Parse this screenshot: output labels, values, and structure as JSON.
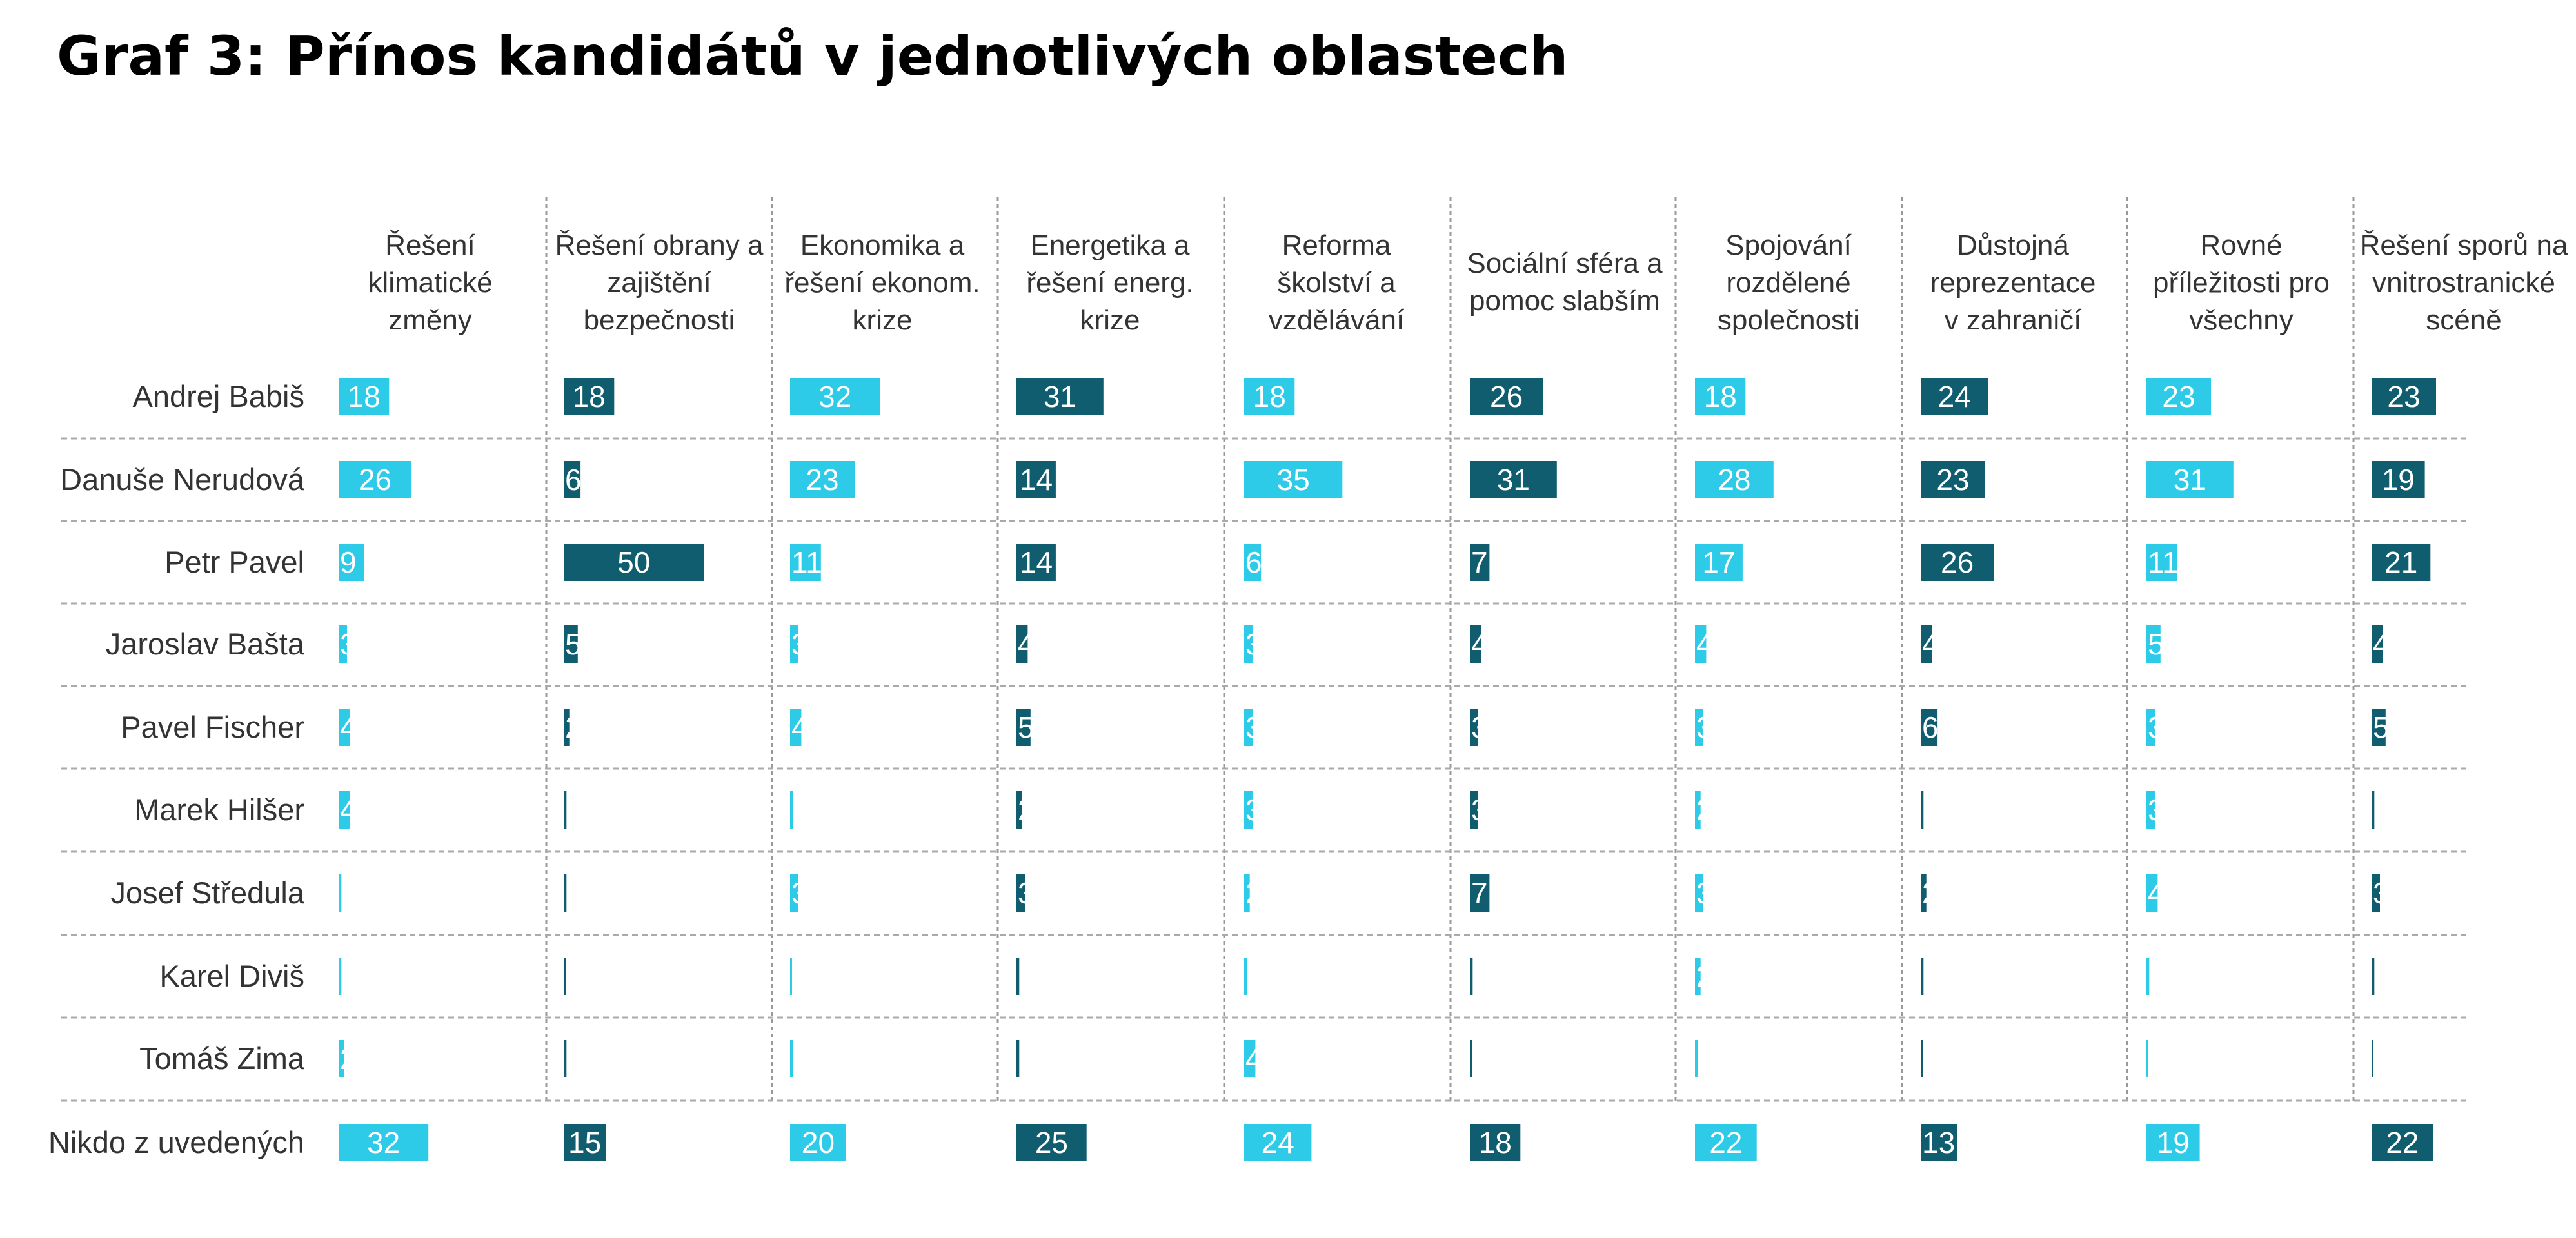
{
  "title": "Graf 3: Přínos kandidátů v jednotlivých oblastech",
  "colors": {
    "light": "#2ecbe8",
    "dark": "#0f5d6e",
    "divider": "#999999",
    "text": "#333333"
  },
  "chart_data": {
    "type": "bar",
    "title": "Graf 3: Přínos kandidátů v jednotlivých oblastech",
    "categories": [
      "Řešení klimatické změny",
      "Řešení obrany a zajištění bezpečnosti",
      "Ekonomika a řešení ekonom. krize",
      "Energetika a řešení energ. krize",
      "Reforma školství a vzdělávání",
      "Sociální sféra a pomoc slabším",
      "Spojování rozdělené společnosti",
      "Důstojná reprezentace v zahraničí",
      "Rovné příležitosti pro všechny",
      "Řešení sporů na vnitrostranické scéně"
    ],
    "header_lines": [
      [
        "Řešení",
        "klimatické",
        "změny"
      ],
      [
        "Řešení obrany a",
        "zajištění",
        "bezpečnosti"
      ],
      [
        "Ekonomika a",
        "řešení ekonom.",
        "krize"
      ],
      [
        "Energetika a",
        "řešení energ.",
        "krize"
      ],
      [
        "Reforma",
        "školství a",
        "vzdělávání"
      ],
      [
        "Sociální sféra a",
        "pomoc slabším"
      ],
      [
        "Spojování",
        "rozdělené",
        "společnosti"
      ],
      [
        "Důstojná",
        "reprezentace",
        "v zahraničí"
      ],
      [
        "Rovné",
        "příležitosti pro",
        "všechny"
      ],
      [
        "Řešení sporů na",
        "vnitrostranické",
        "scéně"
      ]
    ],
    "category_colors": [
      "light",
      "dark",
      "light",
      "dark",
      "light",
      "dark",
      "light",
      "dark",
      "light",
      "dark"
    ],
    "series": [
      {
        "name": "Andrej Babiš",
        "values": [
          18,
          18,
          32,
          31,
          18,
          26,
          18,
          24,
          23,
          23
        ]
      },
      {
        "name": "Danuše Nerudová",
        "values": [
          26,
          6,
          23,
          14,
          35,
          31,
          28,
          23,
          31,
          19
        ]
      },
      {
        "name": "Petr Pavel",
        "values": [
          9,
          50,
          11,
          14,
          6,
          7,
          17,
          26,
          11,
          21
        ]
      },
      {
        "name": "Jaroslav Bašta",
        "values": [
          3,
          5,
          3,
          4,
          3,
          4,
          4,
          4,
          5,
          4
        ]
      },
      {
        "name": "Pavel Fischer",
        "values": [
          4,
          2,
          4,
          5,
          3,
          3,
          3,
          6,
          3,
          5
        ]
      },
      {
        "name": "Marek Hilšer",
        "values": [
          4,
          1,
          1,
          2,
          3,
          3,
          2,
          1,
          3,
          1
        ]
      },
      {
        "name": "Josef Středula",
        "values": [
          1,
          1,
          3,
          3,
          2,
          7,
          3,
          2,
          4,
          3
        ]
      },
      {
        "name": "Karel Diviš",
        "values": [
          1,
          0.5,
          0.5,
          1,
          1,
          1,
          2,
          1,
          1,
          1
        ]
      },
      {
        "name": "Tomáš Zima",
        "values": [
          2,
          1,
          1,
          1,
          4,
          0.5,
          1,
          0.5,
          0.5,
          0.5
        ]
      },
      {
        "name": "Nikdo z uvedených",
        "values": [
          32,
          15,
          20,
          25,
          24,
          18,
          22,
          13,
          19,
          22
        ]
      }
    ],
    "grid": false,
    "legend": "none"
  }
}
